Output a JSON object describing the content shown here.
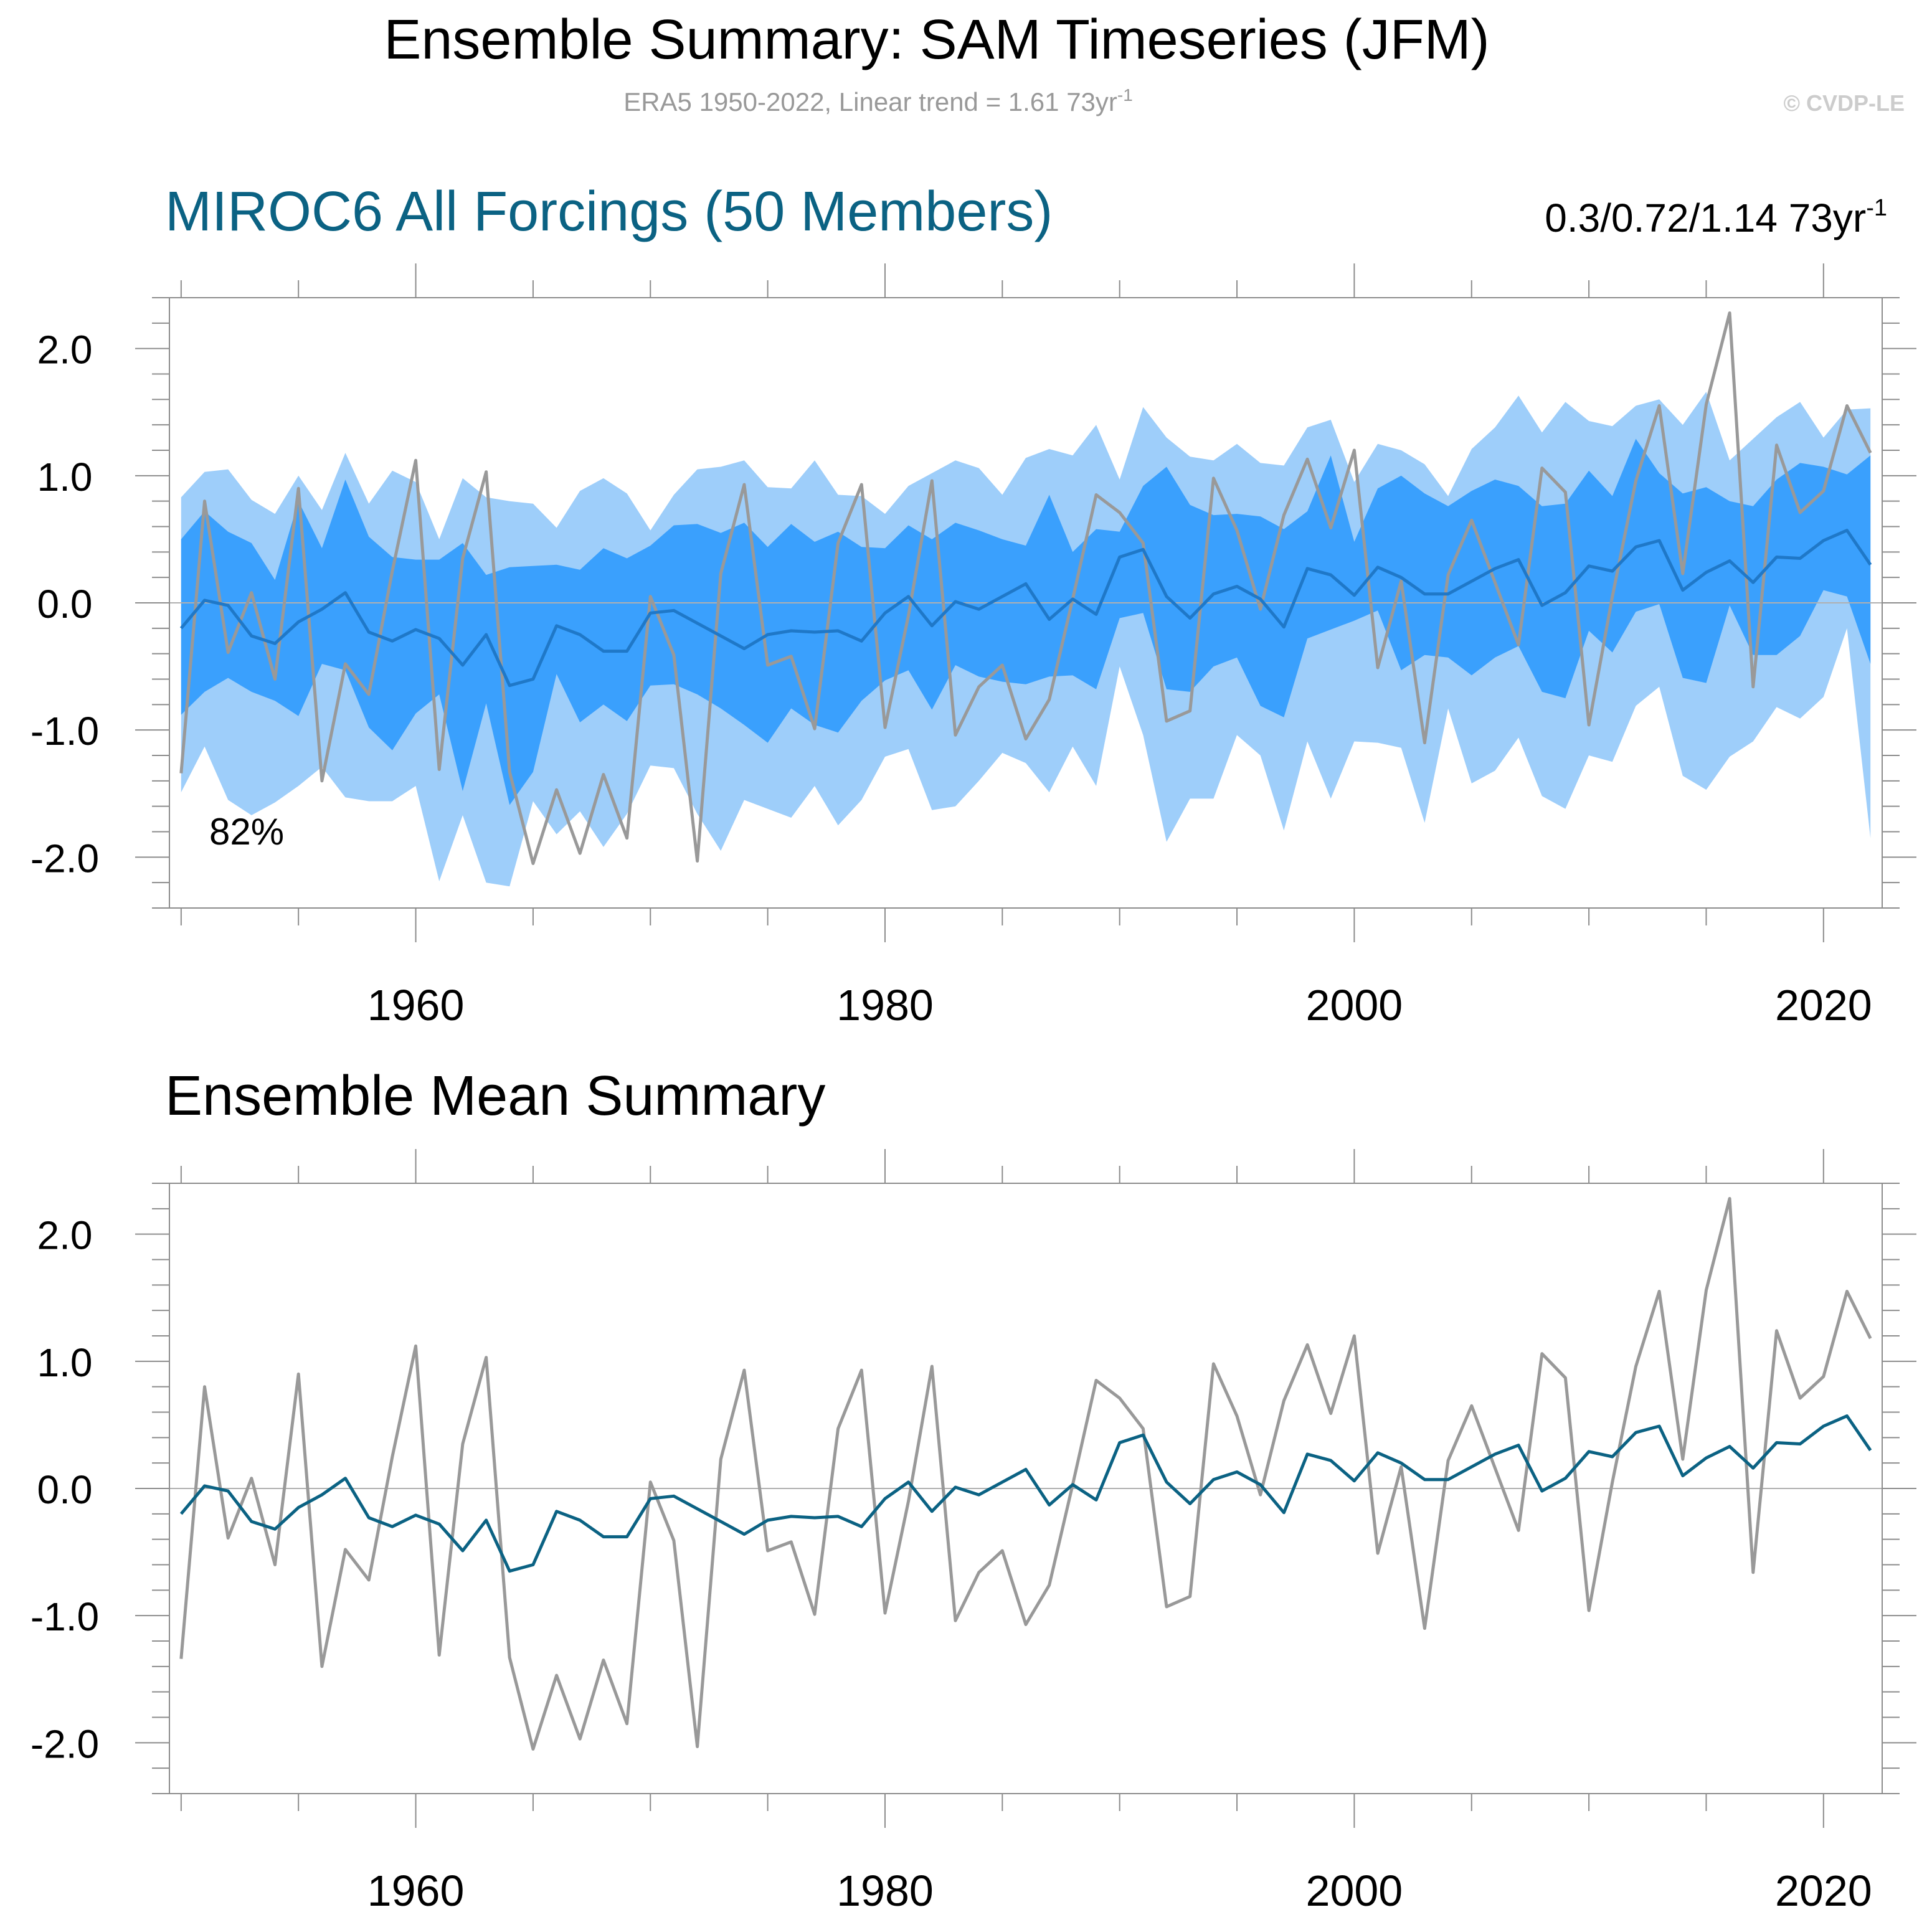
{
  "header": {
    "title": "Ensemble Summary: SAM Timeseries (JFM)",
    "subtitle": "ERA5 1950-2022, Linear trend = 1.61 73yr",
    "subtitle_sup": "-1",
    "watermark": "© CVDP-LE"
  },
  "colors": {
    "ensemble_mean": "#0b6283",
    "ensemble_mean_top": "#1f78c8",
    "observed": "#999999",
    "band_outer": "#9ecefa",
    "band_inner": "#3aa0fd",
    "title_accent": "#0b6283",
    "subtitle": "#999999",
    "watermark": "#cccccc"
  },
  "chart_data": [
    {
      "id": "top",
      "type": "area",
      "title": "MIROC6 All Forcings (50 Members)",
      "trend_text": "0.3/0.72/1.14 73yr",
      "trend_sup": "-1",
      "annotation": "82%",
      "xlabel": "",
      "ylabel": "",
      "xlim": [
        1949.5,
        2022.5
      ],
      "ylim": [
        -2.4,
        2.4
      ],
      "x_ticks": [
        1960,
        1980,
        2000,
        2020
      ],
      "y_ticks": [
        "2.0",
        "1.0",
        "0.0",
        "-1.0",
        "-2.0"
      ],
      "grid": false,
      "series": [
        {
          "name": "Ensemble min/max range (light blue)",
          "kind": "band-outer"
        },
        {
          "name": "Ensemble 10th-90th percentile (blue)",
          "kind": "band-inner"
        },
        {
          "name": "Ensemble mean",
          "kind": "line"
        },
        {
          "name": "ERA5 observed",
          "kind": "line"
        }
      ]
    },
    {
      "id": "bottom",
      "type": "line",
      "title": "Ensemble Mean Summary",
      "xlabel": "",
      "ylabel": "",
      "xlim": [
        1949.5,
        2022.5
      ],
      "ylim": [
        -2.4,
        2.4
      ],
      "x_ticks": [
        1960,
        1980,
        2000,
        2020
      ],
      "y_ticks": [
        "2.0",
        "1.0",
        "0.0",
        "-1.0",
        "-2.0"
      ],
      "grid": false,
      "series": [
        {
          "name": "Ensemble mean",
          "kind": "line"
        },
        {
          "name": "ERA5 observed",
          "kind": "line"
        }
      ]
    }
  ],
  "series_values": {
    "years_start": 1950,
    "ensemble_mean": [
      -0.2,
      0.02,
      -0.02,
      -0.26,
      -0.32,
      -0.15,
      -0.05,
      0.08,
      -0.23,
      -0.3,
      -0.21,
      -0.28,
      -0.49,
      -0.25,
      -0.65,
      -0.6,
      -0.18,
      -0.25,
      -0.38,
      -0.38,
      -0.08,
      -0.06,
      -0.16,
      -0.26,
      -0.36,
      -0.25,
      -0.22,
      -0.23,
      -0.22,
      -0.3,
      -0.08,
      0.05,
      -0.18,
      0.01,
      -0.05,
      0.05,
      0.15,
      -0.13,
      0.03,
      -0.09,
      0.36,
      0.42,
      0.05,
      -0.12,
      0.07,
      0.13,
      0.03,
      -0.19,
      0.27,
      0.22,
      0.06,
      0.28,
      0.2,
      0.07,
      0.07,
      0.17,
      0.27,
      0.34,
      -0.02,
      0.08,
      0.29,
      0.25,
      0.44,
      0.49,
      0.1,
      0.24,
      0.33,
      0.16,
      0.36,
      0.35,
      0.49,
      0.57,
      0.3
    ],
    "observed": [
      -1.34,
      0.8,
      -0.39,
      0.08,
      -0.6,
      0.9,
      -1.4,
      -0.48,
      -0.72,
      0.25,
      1.12,
      -1.31,
      0.35,
      1.03,
      -1.33,
      -2.05,
      -1.47,
      -1.97,
      -1.35,
      -1.85,
      0.05,
      -0.41,
      -2.03,
      0.23,
      0.93,
      -0.49,
      -0.42,
      -0.99,
      0.47,
      0.93,
      -0.98,
      -0.1,
      0.96,
      -1.04,
      -0.66,
      -0.49,
      -1.07,
      -0.76,
      0.03,
      0.85,
      0.71,
      0.47,
      -0.93,
      -0.85,
      0.98,
      0.57,
      -0.05,
      0.69,
      1.13,
      0.59,
      1.2,
      -0.51,
      0.17,
      -1.1,
      0.22,
      0.65,
      0.16,
      -0.33,
      1.06,
      0.87,
      -0.96,
      0.05,
      0.96,
      1.55,
      0.23,
      1.56,
      2.28,
      -0.66,
      1.24,
      0.71,
      0.88,
      1.55,
      1.18
    ],
    "band_outer_top": [
      0.83,
      1.03,
      1.05,
      0.81,
      0.7,
      1.0,
      0.73,
      1.18,
      0.78,
      1.04,
      0.95,
      0.5,
      0.98,
      0.83,
      0.8,
      0.78,
      0.59,
      0.88,
      0.98,
      0.86,
      0.57,
      0.85,
      1.05,
      1.07,
      1.12,
      0.91,
      0.9,
      1.12,
      0.85,
      0.84,
      0.7,
      0.92,
      1.02,
      1.12,
      1.06,
      0.85,
      1.14,
      1.21,
      1.16,
      1.4,
      0.97,
      1.54,
      1.3,
      1.15,
      1.12,
      1.25,
      1.1,
      1.08,
      1.38,
      1.44,
      0.95,
      1.25,
      1.2,
      1.09,
      0.84,
      1.21,
      1.38,
      1.63,
      1.34,
      1.58,
      1.43,
      1.39,
      1.55,
      1.6,
      1.4,
      1.66,
      1.12,
      1.29,
      1.46,
      1.58,
      1.3,
      1.52,
      1.53
    ],
    "band_inner_top": [
      0.5,
      0.72,
      0.56,
      0.47,
      0.18,
      0.8,
      0.43,
      0.97,
      0.52,
      0.36,
      0.34,
      0.34,
      0.47,
      0.22,
      0.28,
      0.29,
      0.3,
      0.26,
      0.43,
      0.35,
      0.45,
      0.61,
      0.62,
      0.55,
      0.63,
      0.44,
      0.62,
      0.48,
      0.56,
      0.44,
      0.43,
      0.61,
      0.5,
      0.63,
      0.57,
      0.5,
      0.45,
      0.85,
      0.4,
      0.58,
      0.56,
      0.92,
      1.07,
      0.77,
      0.69,
      0.7,
      0.68,
      0.58,
      0.72,
      1.16,
      0.48,
      0.9,
      1.0,
      0.86,
      0.76,
      0.88,
      0.97,
      0.92,
      0.76,
      0.78,
      1.04,
      0.84,
      1.29,
      1.02,
      0.86,
      0.91,
      0.8,
      0.76,
      0.97,
      1.1,
      1.07,
      1.01,
      1.16
    ],
    "band_inner_bottom": [
      -0.88,
      -0.7,
      -0.59,
      -0.7,
      -0.77,
      -0.89,
      -0.48,
      -0.53,
      -0.98,
      -1.16,
      -0.87,
      -0.72,
      -1.48,
      -0.79,
      -1.59,
      -1.33,
      -0.56,
      -0.94,
      -0.8,
      -0.93,
      -0.65,
      -0.64,
      -0.72,
      -0.83,
      -0.96,
      -1.1,
      -0.83,
      -0.96,
      -1.02,
      -0.77,
      -0.61,
      -0.53,
      -0.84,
      -0.49,
      -0.58,
      -0.62,
      -0.64,
      -0.58,
      -0.57,
      -0.68,
      -0.12,
      -0.08,
      -0.68,
      -0.7,
      -0.5,
      -0.43,
      -0.81,
      -0.9,
      -0.28,
      -0.21,
      -0.14,
      -0.06,
      -0.53,
      -0.41,
      -0.43,
      -0.57,
      -0.43,
      -0.34,
      -0.7,
      -0.75,
      -0.22,
      -0.39,
      -0.07,
      -0.01,
      -0.59,
      -0.63,
      -0.02,
      -0.41,
      -0.41,
      -0.26,
      0.1,
      0.05,
      -0.48
    ],
    "band_outer_bottom": [
      -1.49,
      -1.13,
      -1.55,
      -1.67,
      -1.57,
      -1.44,
      -1.29,
      -1.53,
      -1.56,
      -1.56,
      -1.44,
      -2.19,
      -1.67,
      -2.2,
      -2.23,
      -1.56,
      -1.82,
      -1.64,
      -1.92,
      -1.66,
      -1.28,
      -1.3,
      -1.66,
      -1.95,
      -1.55,
      -1.62,
      -1.69,
      -1.44,
      -1.75,
      -1.55,
      -1.21,
      -1.15,
      -1.63,
      -1.6,
      -1.4,
      -1.18,
      -1.26,
      -1.49,
      -1.13,
      -1.44,
      -0.5,
      -1.04,
      -1.88,
      -1.54,
      -1.54,
      -1.04,
      -1.2,
      -1.79,
      -1.09,
      -1.54,
      -1.09,
      -1.1,
      -1.14,
      -1.73,
      -0.83,
      -1.42,
      -1.32,
      -1.06,
      -1.52,
      -1.62,
      -1.2,
      -1.25,
      -0.81,
      -0.66,
      -1.36,
      -1.47,
      -1.21,
      -1.09,
      -0.82,
      -0.91,
      -0.74,
      -0.2,
      -1.85
    ]
  }
}
